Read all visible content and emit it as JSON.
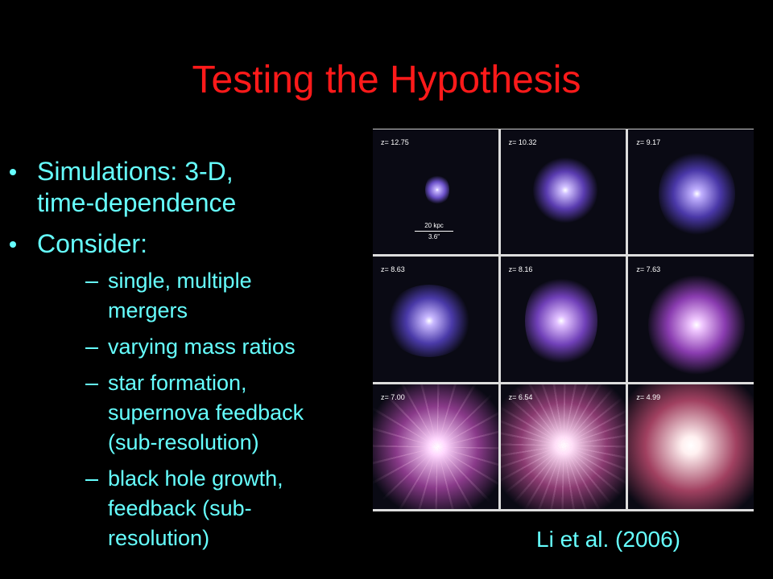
{
  "title": "Testing the Hypothesis",
  "bullets": [
    {
      "lines": [
        "Simulations: 3-D,",
        "time-dependence"
      ],
      "subs": []
    },
    {
      "lines": [
        "Consider:"
      ],
      "subs": [
        {
          "lines": [
            "single, multiple",
            "mergers"
          ]
        },
        {
          "lines": [
            "varying mass ratios"
          ]
        },
        {
          "lines": [
            "star formation,",
            "supernova feedback",
            "(sub-resolution)"
          ]
        },
        {
          "lines": [
            "black hole growth,",
            "feedback (sub-",
            "resolution)"
          ]
        }
      ]
    }
  ],
  "figure": {
    "panels": [
      "z= 12.75",
      "z= 10.32",
      "z= 9.17",
      "z= 8.63",
      "z= 8.16",
      "z= 7.63",
      "z= 7.00",
      "z= 6.54",
      "z= 4.99"
    ],
    "scale_bar": {
      "top": "20 kpc",
      "bottom": "3.6″"
    },
    "caption": "Li et al. (2006)"
  }
}
